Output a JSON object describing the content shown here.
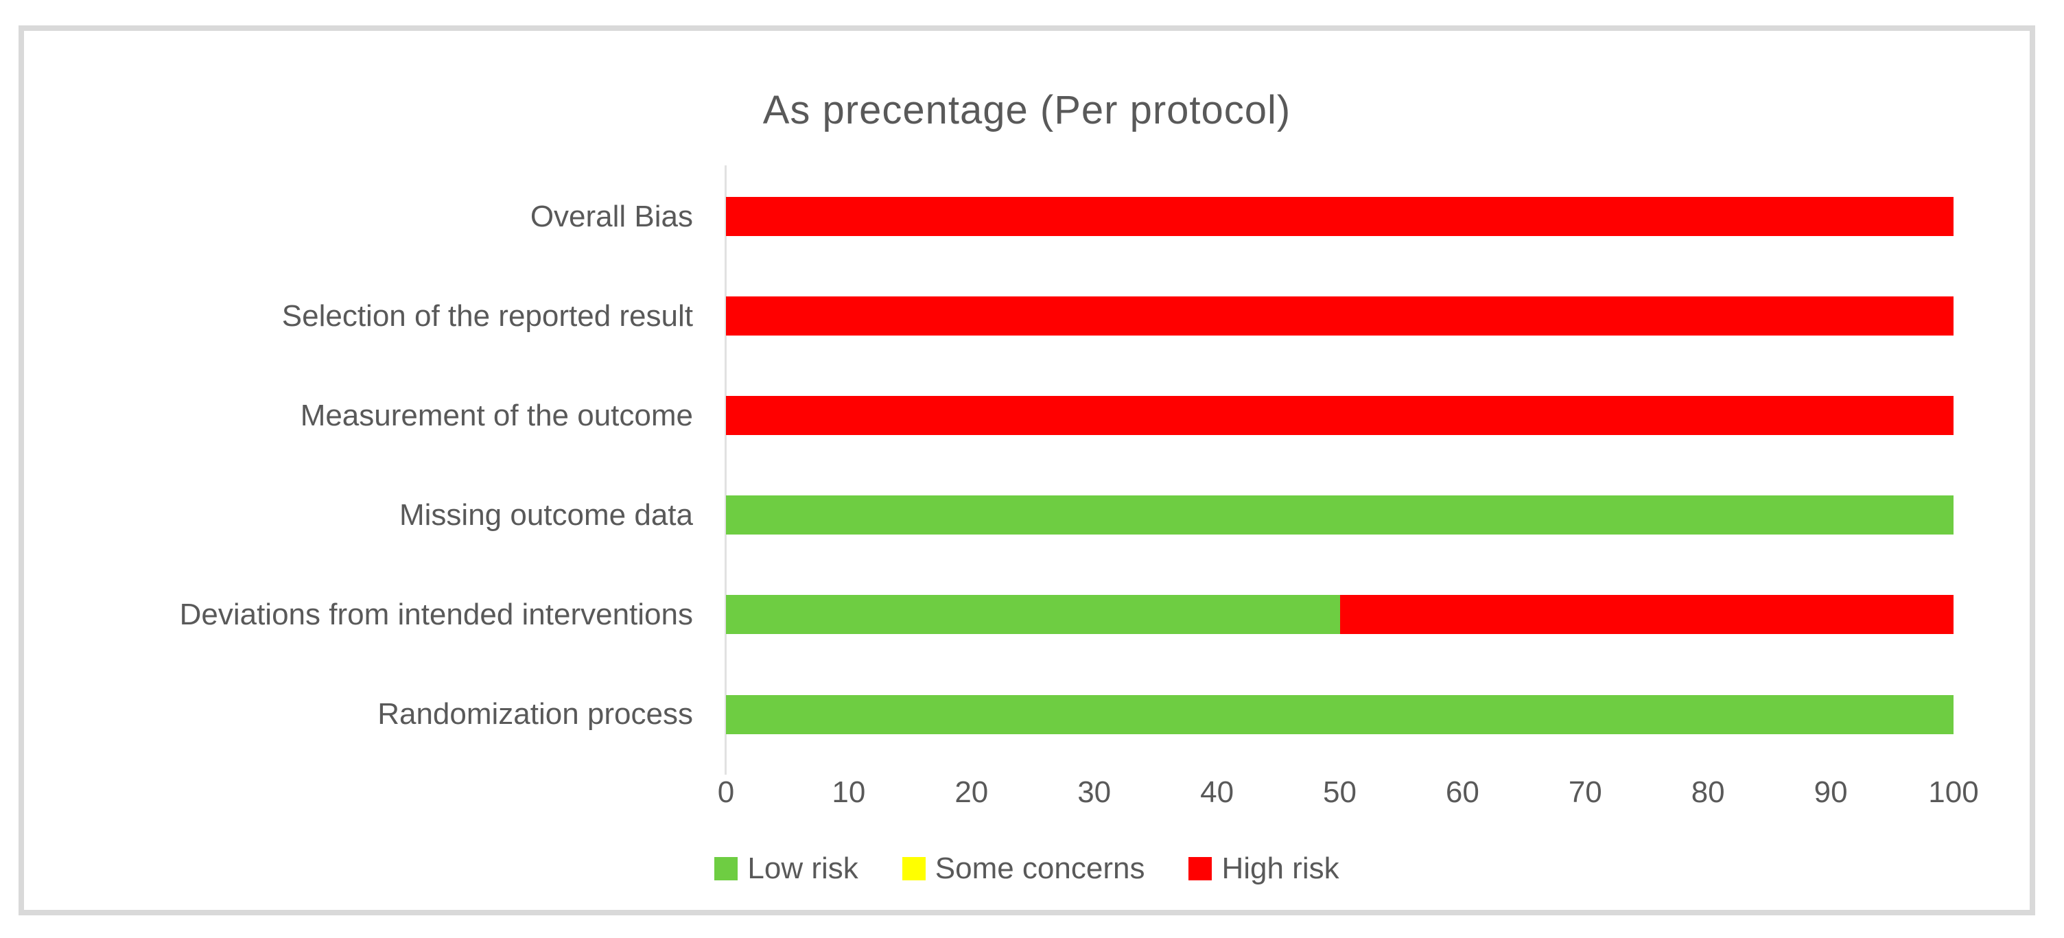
{
  "chart_data": {
    "type": "bar",
    "orientation": "horizontal",
    "stacked": true,
    "title": "As precentage (Per protocol)",
    "categories": [
      "Overall Bias",
      "Selection of the reported result",
      "Measurement of the outcome",
      "Missing outcome data",
      "Deviations from intended interventions",
      "Randomization process"
    ],
    "series": [
      {
        "name": "Low risk",
        "color": "#6ecd42",
        "values": [
          0,
          0,
          0,
          100,
          50,
          100
        ]
      },
      {
        "name": "Some concerns",
        "color": "#ffff00",
        "values": [
          0,
          0,
          0,
          0,
          0,
          0
        ]
      },
      {
        "name": "High risk",
        "color": "#ff0000",
        "values": [
          100,
          100,
          100,
          0,
          50,
          0
        ]
      }
    ],
    "x_ticks": [
      0,
      10,
      20,
      30,
      40,
      50,
      60,
      70,
      80,
      90,
      100
    ],
    "xlim": [
      0,
      100
    ],
    "xlabel": "",
    "ylabel": "",
    "grid": false,
    "legend_position": "bottom"
  },
  "colors": {
    "title_text": "#595959",
    "axis_text": "#595959",
    "panel_border": "#d9d9d9",
    "axis_line": "#e2e2e2",
    "low_risk": "#6ecd42",
    "some_concerns": "#ffff00",
    "high_risk": "#ff0000"
  }
}
